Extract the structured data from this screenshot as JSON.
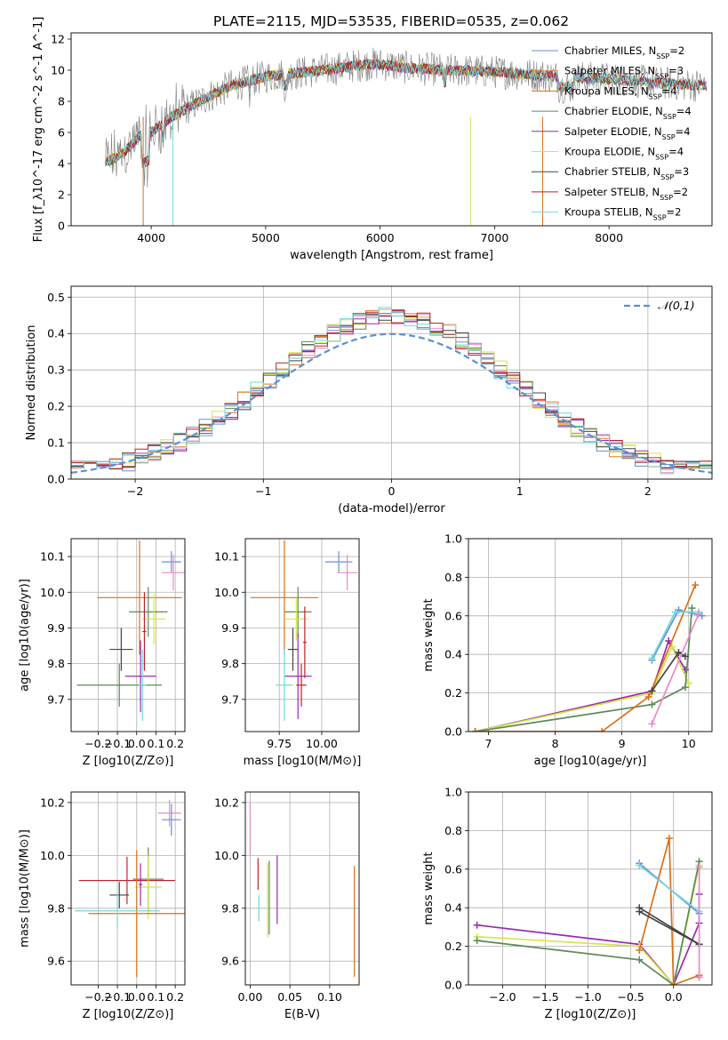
{
  "figure": {
    "title": "PLATE=2115, MJD=53535, FIBERID=0535, z=0.062"
  },
  "colors": {
    "grid": "#b0b0b0",
    "data_spectrum": "#808080"
  },
  "chart_data": [
    {
      "id": "spectrum",
      "type": "line",
      "title": "PLATE=2115, MJD=53535, FIBERID=0535, z=0.062",
      "xlabel": "wavelength [Angstrom, rest frame]",
      "ylabel": "Flux [f_λ10^-17 erg cm^-2 s^-1 A^-1]",
      "xlim": [
        3300,
        8900
      ],
      "ylim": [
        0,
        12.4
      ],
      "xticks": [
        4000,
        5000,
        6000,
        7000,
        8000
      ],
      "yticks": [
        0,
        2,
        4,
        6,
        8,
        10,
        12
      ],
      "grid": false,
      "legend_position": "top-right",
      "continuum": {
        "x": [
          3600,
          3700,
          3800,
          3900,
          4000,
          4100,
          4200,
          4300,
          4500,
          4700,
          5000,
          5500,
          5900,
          6000,
          6300,
          6600,
          7000,
          7200,
          7500,
          7800,
          8100,
          8400,
          8850
        ],
        "y": [
          4.1,
          4.4,
          5.0,
          5.8,
          6.0,
          6.6,
          7.1,
          7.5,
          8.3,
          9.0,
          9.6,
          10.0,
          10.4,
          10.4,
          10.1,
          10.0,
          9.9,
          9.8,
          9.6,
          9.5,
          9.4,
          9.2,
          9.0
        ]
      },
      "series": [
        {
          "name": "Chabrier MILES, N_SSP=2",
          "color": "#6a8fd8"
        },
        {
          "name": "Salpeter MILES, N_SSP=3",
          "color": "#e07a2e"
        },
        {
          "name": "Kroupa MILES, N_SSP=4",
          "color": "#d9711e"
        },
        {
          "name": "Chabrier ELODIE, N_SSP=4",
          "color": "#5a8a5a"
        },
        {
          "name": "Salpeter ELODIE, N_SSP=4",
          "color": "#9b27b0"
        },
        {
          "name": "Kroupa ELODIE, N_SSP=4",
          "color": "#d4e64a"
        },
        {
          "name": "Chabrier STELIB, N_SSP=3",
          "color": "#454545"
        },
        {
          "name": "Salpeter STELIB, N_SSP=2",
          "color": "#c0202a"
        },
        {
          "name": "Kroupa STELIB, N_SSP=2",
          "color": "#70dada"
        }
      ]
    },
    {
      "id": "residuals",
      "type": "line",
      "xlabel": "(data-model)/error",
      "ylabel": "Normed distribution",
      "xlim": [
        -2.5,
        2.5
      ],
      "ylim": [
        0,
        0.53
      ],
      "xticks": [
        -2,
        -1,
        0,
        1,
        2
      ],
      "yticks": [
        0.0,
        0.1,
        0.2,
        0.3,
        0.4,
        0.5
      ],
      "grid": true,
      "legend_position": "top-right",
      "reference": {
        "name": "𝒩(0,1)",
        "color": "#5b8fd8"
      },
      "histogram_bin_width": 0.1,
      "series_colors": [
        "#6a8fd8",
        "#e07a2e",
        "#e88ac8",
        "#5a8a5a",
        "#9b27b0",
        "#d4e64a",
        "#454545",
        "#c0202a",
        "#70dada"
      ]
    },
    {
      "id": "age-vs-Z",
      "type": "scatter",
      "xlabel": "Z [log10(Z/Z⊙)]",
      "ylabel": "age [log10(age/yr)]",
      "xlim": [
        -0.34,
        0.25
      ],
      "ylim": [
        9.61,
        10.15
      ],
      "xticks": [
        -0.2,
        -0.1,
        0.0,
        0.1,
        0.2
      ],
      "yticks": [
        9.7,
        9.8,
        9.9,
        10.0,
        10.1
      ],
      "grid": true,
      "points": [
        {
          "x": 0.18,
          "y": 10.085,
          "xerr": 0.05,
          "yerr": 0.03,
          "color": "#6a8fd8"
        },
        {
          "x": 0.19,
          "y": 10.055,
          "xerr": 0.06,
          "yerr": 0.05,
          "color": "#e88ac8"
        },
        {
          "x": 0.015,
          "y": 9.985,
          "xerr": 0.22,
          "yerr": 0.16,
          "color": "#d9711e"
        },
        {
          "x": 0.06,
          "y": 9.945,
          "xerr": 0.1,
          "yerr": 0.07,
          "color": "#5a8a5a"
        },
        {
          "x": 0.09,
          "y": 9.925,
          "xerr": 0.06,
          "yerr": 0.07,
          "color": "#d4e64a"
        },
        {
          "x": 0.04,
          "y": 9.89,
          "xerr": 0.01,
          "yerr": 0.11,
          "color": "#c0202a"
        },
        {
          "x": -0.08,
          "y": 9.84,
          "xerr": 0.06,
          "yerr": 0.06,
          "color": "#454545"
        },
        {
          "x": 0.02,
          "y": 9.765,
          "xerr": 0.08,
          "yerr": 0.1,
          "color": "#9b27b0"
        },
        {
          "x": -0.09,
          "y": 9.74,
          "xerr": 0.22,
          "yerr": 0.06,
          "color": "#5a8a5a"
        },
        {
          "x": 0.03,
          "y": 9.74,
          "xerr": 0.02,
          "yerr": 0.1,
          "color": "#70dada"
        }
      ]
    },
    {
      "id": "age-vs-mass",
      "type": "scatter",
      "xlabel": "mass [log10(M/M⊙)]",
      "ylabel": "",
      "xlim": [
        9.55,
        10.22
      ],
      "ylim": [
        9.61,
        10.15
      ],
      "xticks": [
        9.75,
        10.0
      ],
      "yticks": [
        9.7,
        9.8,
        9.9,
        10.0,
        10.1
      ],
      "grid": true,
      "points": [
        {
          "x": 10.1,
          "y": 10.085,
          "xerr": 0.08,
          "yerr": 0.03,
          "color": "#6a8fd8"
        },
        {
          "x": 10.15,
          "y": 10.055,
          "xerr": 0.06,
          "yerr": 0.05,
          "color": "#e88ac8"
        },
        {
          "x": 9.78,
          "y": 9.985,
          "xerr": 0.2,
          "yerr": 0.16,
          "color": "#d9711e"
        },
        {
          "x": 9.86,
          "y": 9.945,
          "xerr": 0.08,
          "yerr": 0.07,
          "color": "#5a8a5a"
        },
        {
          "x": 9.85,
          "y": 9.925,
          "xerr": 0.07,
          "yerr": 0.06,
          "color": "#d4e64a"
        },
        {
          "x": 9.9,
          "y": 9.86,
          "xerr": 0.01,
          "yerr": 0.1,
          "color": "#c0202a"
        },
        {
          "x": 9.83,
          "y": 9.84,
          "xerr": 0.03,
          "yerr": 0.06,
          "color": "#454545"
        },
        {
          "x": 9.86,
          "y": 9.765,
          "xerr": 0.08,
          "yerr": 0.12,
          "color": "#9b27b0"
        },
        {
          "x": 9.88,
          "y": 9.74,
          "xerr": 0.03,
          "yerr": 0.06,
          "color": "#c0202a"
        },
        {
          "x": 9.78,
          "y": 9.74,
          "xerr": 0.05,
          "yerr": 0.1,
          "color": "#70dada"
        }
      ]
    },
    {
      "id": "mass-weight-vs-age",
      "type": "line",
      "xlabel": "age [log10(age/yr)]",
      "ylabel": "mass weight",
      "xlim": [
        6.7,
        10.35
      ],
      "ylim": [
        0,
        1.0
      ],
      "xticks": [
        7,
        8,
        9,
        10
      ],
      "yticks": [
        0.0,
        0.2,
        0.4,
        0.6,
        0.8,
        1.0
      ],
      "grid": true,
      "series": [
        {
          "color": "#9b27b0",
          "x": [
            6.8,
            9.45,
            9.7,
            9.95
          ],
          "y": [
            0.0,
            0.21,
            0.47,
            0.32
          ]
        },
        {
          "color": "#d4e64a",
          "x": [
            6.8,
            9.45,
            9.75,
            10.0
          ],
          "y": [
            0.0,
            0.2,
            0.44,
            0.25
          ]
        },
        {
          "color": "#5a8a5a",
          "x": [
            6.8,
            9.45,
            9.95,
            10.05
          ],
          "y": [
            0.0,
            0.14,
            0.23,
            0.64
          ]
        },
        {
          "color": "#d9711e",
          "x": [
            6.8,
            8.7,
            9.4,
            10.1
          ],
          "y": [
            0.0,
            0.0,
            0.18,
            0.76
          ]
        },
        {
          "color": "#454545",
          "x": [
            9.45,
            9.85,
            9.95
          ],
          "y": [
            0.21,
            0.41,
            0.39
          ]
        },
        {
          "color": "#6a8fd8",
          "x": [
            9.45,
            9.85,
            10.2
          ],
          "y": [
            0.37,
            0.63,
            0.6
          ]
        },
        {
          "color": "#70dada",
          "x": [
            9.45,
            9.8,
            10.15
          ],
          "y": [
            0.38,
            0.62,
            0.62
          ]
        },
        {
          "color": "#e88ac8",
          "x": [
            9.45,
            10.15
          ],
          "y": [
            0.04,
            0.61
          ]
        }
      ]
    },
    {
      "id": "mass-vs-Z",
      "type": "scatter",
      "xlabel": "Z [log10(Z/Z⊙)]",
      "ylabel": "mass [log10(M/M⊙)]",
      "xlim": [
        -0.34,
        0.25
      ],
      "ylim": [
        9.51,
        10.24
      ],
      "xticks": [
        -0.2,
        -0.1,
        0.0,
        0.1,
        0.2
      ],
      "yticks": [
        9.6,
        9.8,
        10.0,
        10.2
      ],
      "grid": true,
      "points": [
        {
          "x": 0.17,
          "y": 10.16,
          "xerr": 0.06,
          "yerr": 0.05,
          "color": "#e88ac8"
        },
        {
          "x": 0.18,
          "y": 10.135,
          "xerr": 0.05,
          "yerr": 0.06,
          "color": "#6a8fd8"
        },
        {
          "x": -0.05,
          "y": 9.905,
          "xerr": 0.25,
          "yerr": 0.09,
          "color": "#c0202a"
        },
        {
          "x": 0.06,
          "y": 9.91,
          "xerr": 0.08,
          "yerr": 0.12,
          "color": "#5a8a5a"
        },
        {
          "x": 0.06,
          "y": 9.88,
          "xerr": 0.07,
          "yerr": 0.12,
          "color": "#d4e64a"
        },
        {
          "x": 0.02,
          "y": 9.89,
          "xerr": 0.01,
          "yerr": 0.08,
          "color": "#9b27b0"
        },
        {
          "x": -0.09,
          "y": 9.85,
          "xerr": 0.05,
          "yerr": 0.05,
          "color": "#454545"
        },
        {
          "x": 0.0,
          "y": 9.78,
          "xerr": 0.25,
          "yerr": 0.24,
          "color": "#d9711e"
        },
        {
          "x": -0.1,
          "y": 9.79,
          "xerr": 0.22,
          "yerr": 0.07,
          "color": "#70dada"
        }
      ]
    },
    {
      "id": "mass-vs-ebv",
      "type": "scatter",
      "xlabel": "E(B-V)",
      "ylabel": "",
      "xlim": [
        -0.006,
        0.137
      ],
      "ylim": [
        9.51,
        10.24
      ],
      "xticks": [
        0.0,
        0.05,
        0.1
      ],
      "tick_labels": [
        "0.00",
        "0.05",
        "0.10"
      ],
      "yticks": [
        9.6,
        9.8,
        10.0,
        10.2
      ],
      "grid": true,
      "points": [
        {
          "x": 0.0,
          "y": 10.1,
          "xerr": 0,
          "yerr": 0.1,
          "color": "#e88ac8"
        },
        {
          "x": 0.01,
          "y": 9.93,
          "xerr": 0,
          "yerr": 0.06,
          "color": "#c0202a"
        },
        {
          "x": 0.011,
          "y": 9.8,
          "xerr": 0,
          "yerr": 0.05,
          "color": "#70dada"
        },
        {
          "x": 0.022,
          "y": 9.83,
          "xerr": 0,
          "yerr": 0.14,
          "color": "#d4e64a"
        },
        {
          "x": 0.024,
          "y": 9.84,
          "xerr": 0,
          "yerr": 0.14,
          "color": "#5a8a5a"
        },
        {
          "x": 0.034,
          "y": 9.87,
          "xerr": 0,
          "yerr": 0.13,
          "color": "#9b27b0"
        },
        {
          "x": 0.131,
          "y": 9.75,
          "xerr": 0,
          "yerr": 0.21,
          "color": "#d9711e"
        }
      ]
    },
    {
      "id": "mass-weight-vs-Z",
      "type": "line",
      "xlabel": "Z [log10(Z/Z⊙)]",
      "ylabel": "mass weight",
      "xlim": [
        -2.4,
        0.45
      ],
      "ylim": [
        0,
        1.0
      ],
      "xticks": [
        -2.0,
        -1.5,
        -1.0,
        -0.5,
        0.0
      ],
      "yticks": [
        0.0,
        0.2,
        0.4,
        0.6,
        0.8,
        1.0
      ],
      "grid": true,
      "series": [
        {
          "color": "#9b27b0",
          "x": [
            -2.3,
            -0.4,
            0.0,
            0.3,
            0.3
          ],
          "y": [
            0.31,
            0.21,
            0.0,
            0.32,
            0.47
          ]
        },
        {
          "color": "#d4e64a",
          "x": [
            -2.3,
            -0.4,
            0.0,
            0.3
          ],
          "y": [
            0.25,
            0.2,
            0.0,
            0.62
          ]
        },
        {
          "color": "#5a8a5a",
          "x": [
            -2.3,
            -0.4,
            0.0,
            0.3
          ],
          "y": [
            0.23,
            0.13,
            0.0,
            0.64
          ]
        },
        {
          "color": "#d9711e",
          "x": [
            -0.4,
            -0.05,
            0.0,
            0.3,
            0.3
          ],
          "y": [
            0.18,
            0.76,
            0.0,
            0.05,
            0.04
          ]
        },
        {
          "color": "#454545",
          "x": [
            -0.4,
            0.3
          ],
          "y": [
            0.4,
            0.21
          ]
        },
        {
          "color": "#454545",
          "x": [
            -0.4,
            0.3
          ],
          "y": [
            0.38,
            0.21
          ]
        },
        {
          "color": "#6a8fd8",
          "x": [
            -0.4,
            0.3
          ],
          "y": [
            0.63,
            0.37
          ]
        },
        {
          "color": "#70dada",
          "x": [
            -0.4,
            0.3
          ],
          "y": [
            0.62,
            0.38
          ]
        },
        {
          "color": "#e88ac8",
          "x": [
            0.3,
            0.3
          ],
          "y": [
            0.04,
            0.61
          ]
        }
      ]
    }
  ]
}
